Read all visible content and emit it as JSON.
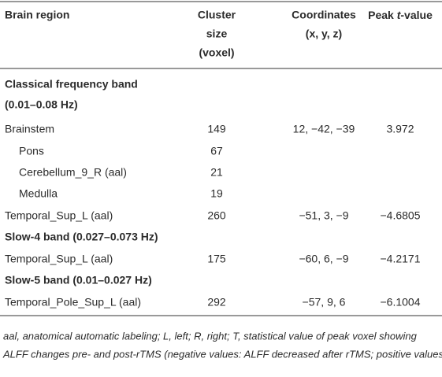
{
  "table": {
    "header": [
      {
        "lines": [
          "Brain region"
        ]
      },
      {
        "lines": [
          "Cluster",
          "size",
          "(voxel)"
        ]
      },
      {
        "lines": [
          "Coordinates",
          "(x, y, z)"
        ]
      },
      {
        "parts": [
          "Peak ",
          "t",
          "-value"
        ]
      }
    ],
    "rows": [
      {
        "section": "Classical frequency band"
      },
      {
        "section": "(0.01–0.08 Hz)"
      },
      {
        "cells": [
          "Brainstem",
          "149",
          "12, −42, −39",
          "3.972"
        ]
      },
      {
        "cells": [
          "Pons",
          "67",
          null,
          null
        ],
        "indent": true
      },
      {
        "cells": [
          "Cerebellum_9_R (aal)",
          "21",
          null,
          null
        ],
        "indent": true
      },
      {
        "cells": [
          "Medulla",
          "19",
          null,
          null
        ],
        "indent": true
      },
      {
        "cells": [
          "Temporal_Sup_L (aal)",
          "260",
          "−51, 3, −9",
          "−4.6805"
        ]
      },
      {
        "section": "Slow-4 band (0.027–0.073 Hz)"
      },
      {
        "cells": [
          "Temporal_Sup_L (aal)",
          "175",
          "−60, 6, −9",
          "−4.2171"
        ]
      },
      {
        "section": "Slow-5 band (0.01–0.027 Hz)"
      },
      {
        "cells": [
          "Temporal_Pole_Sup_L (aal)",
          "292",
          "−57, 9, 6",
          "−6.1004"
        ]
      }
    ],
    "footnote": [
      "aal, anatomical automatic labeling; L, left; R, right; T, statistical value of peak voxel showing",
      "ALFF changes pre- and post-rTMS (negative values: ALFF decreased after rTMS; positive values: ALFF increased after rTMS)."
    ]
  }
}
